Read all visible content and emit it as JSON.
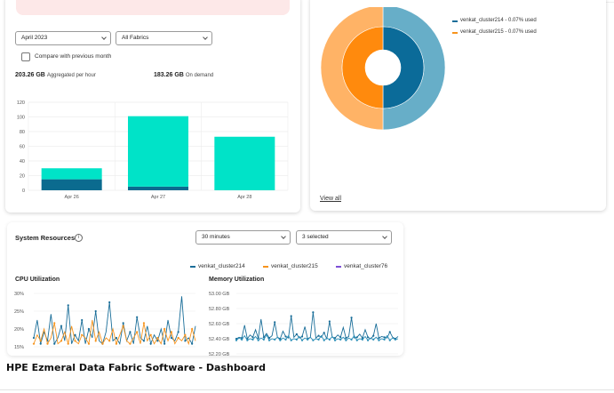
{
  "billing": {
    "month_select": "April 2023",
    "fabric_select": "All Fabrics",
    "compare_label": "Compare with previous month",
    "aggregated_value": "203.26 GB",
    "aggregated_label": "Aggregated per hour",
    "ondemand_value": "183.26 GB",
    "ondemand_label": "On demand"
  },
  "donut": {
    "legend": [
      {
        "label": "venkat_cluster214 - 0.07% used",
        "color": "#1a6e99"
      },
      {
        "label": "venkat_cluster215 - 0.07% used",
        "color": "#f7941d"
      }
    ],
    "view_all": "View all"
  },
  "resources": {
    "title": "System Resources",
    "info_icon": "info-circle-icon",
    "time_select": "30 minutes",
    "cluster_select": "3 selected",
    "legend": [
      {
        "label": "venkat_cluster214",
        "color": "#1a6e99"
      },
      {
        "label": "venkat_cluster215",
        "color": "#f7941d"
      },
      {
        "label": "venkat_cluster76",
        "color": "#7d4fd6"
      }
    ],
    "cpu_title": "CPU Utilization",
    "memory_title": "Memory Utilization"
  },
  "caption": "HPE Ezmeral Data Fabric Software - Dashboard",
  "chart_data": [
    {
      "type": "bar",
      "stacked": true,
      "categories": [
        "Apr 26",
        "Apr 27",
        "Apr 28"
      ],
      "series": [
        {
          "values": [
            15,
            5,
            0
          ],
          "color": "#0b6b8f"
        },
        {
          "values": [
            15,
            96,
            73
          ],
          "color": "#00e3c8"
        }
      ],
      "ylim": [
        0,
        120
      ],
      "yticks": [
        0,
        20,
        40,
        60,
        80,
        100,
        120
      ],
      "grid": true
    },
    {
      "type": "pie",
      "rings": [
        {
          "ring": "outer",
          "slices": [
            {
              "value": 50,
              "color": "#67aec8"
            },
            {
              "value": 50,
              "color": "#ffb366"
            }
          ]
        },
        {
          "ring": "inner",
          "slices": [
            {
              "value": 50,
              "color": "#0b6b99"
            },
            {
              "value": 50,
              "color": "#ff8a0d"
            }
          ]
        }
      ]
    },
    {
      "type": "line",
      "title": "CPU Utilization",
      "yticks": [
        "30%",
        "25%",
        "20%",
        "15%"
      ],
      "ylim": [
        13,
        31
      ],
      "series": [
        {
          "name": "venkat_cluster214",
          "color": "#1a6e99",
          "values": [
            16,
            22,
            14,
            18,
            15,
            24,
            14,
            16,
            20,
            15,
            27,
            14,
            17,
            15,
            22,
            14,
            19,
            16,
            25,
            15,
            14,
            18,
            28,
            15,
            16,
            14,
            21,
            15,
            18,
            14,
            23,
            16,
            15,
            20,
            14,
            17,
            15,
            19,
            14,
            22,
            16,
            15,
            18,
            30,
            15,
            16,
            14,
            20
          ]
        },
        {
          "name": "venkat_cluster215",
          "color": "#f7941d",
          "values": [
            14,
            17,
            15,
            19,
            14,
            16,
            21,
            14,
            15,
            18,
            14,
            20,
            15,
            14,
            17,
            16,
            14,
            22,
            15,
            18,
            14,
            16,
            15,
            19,
            14,
            17,
            20,
            15,
            14,
            16,
            18,
            14,
            21,
            15,
            17,
            14,
            16,
            14,
            19,
            15,
            18,
            14,
            16,
            15,
            17,
            14,
            19,
            15
          ]
        }
      ]
    },
    {
      "type": "line",
      "title": "Memory Utilization",
      "yticks": [
        "53.00 GB",
        "52.80 GB",
        "52.60 GB",
        "52.40 GB",
        "52.20 GB"
      ],
      "ylim": [
        52.2,
        53.0
      ],
      "series": [
        {
          "name": "venkat_cluster214",
          "color": "#1a6e99",
          "values": [
            52.4,
            52.42,
            52.41,
            52.58,
            52.4,
            52.45,
            52.42,
            52.52,
            52.41,
            52.66,
            52.42,
            52.47,
            52.41,
            52.44,
            52.62,
            52.42,
            52.4,
            52.5,
            52.43,
            52.41,
            52.7,
            52.42,
            52.46,
            52.41,
            52.43,
            52.56,
            52.4,
            52.42,
            52.75,
            52.41,
            52.44,
            52.42,
            52.48,
            52.4,
            52.63,
            52.42,
            52.41,
            52.45,
            52.42,
            52.55,
            52.41,
            52.43,
            52.68,
            52.41,
            52.42,
            52.46,
            52.41,
            52.52,
            52.42,
            52.4,
            52.44,
            52.6,
            52.41,
            52.43,
            52.42,
            52.41,
            52.49,
            52.42,
            52.4,
            52.43
          ]
        },
        {
          "name": "venkat_cluster215",
          "color": "#2b8fb8",
          "values": [
            52.38,
            52.41,
            52.39,
            52.44,
            52.38,
            52.4,
            52.39,
            52.43,
            52.38,
            52.41,
            52.39,
            52.45,
            52.38,
            52.4,
            52.39,
            52.42,
            52.38,
            52.41,
            52.39,
            52.44,
            52.38,
            52.4,
            52.39,
            52.43,
            52.38,
            52.41,
            52.39,
            52.42,
            52.38,
            52.4,
            52.39,
            52.44,
            52.38,
            52.41,
            52.39,
            52.43,
            52.38,
            52.4,
            52.39,
            52.42,
            52.38,
            52.41,
            52.39,
            52.44,
            52.38,
            52.4,
            52.39,
            52.43,
            52.38,
            52.41,
            52.39,
            52.42,
            52.38,
            52.4,
            52.39,
            52.44,
            52.38,
            52.41,
            52.39,
            52.4
          ]
        }
      ]
    }
  ]
}
